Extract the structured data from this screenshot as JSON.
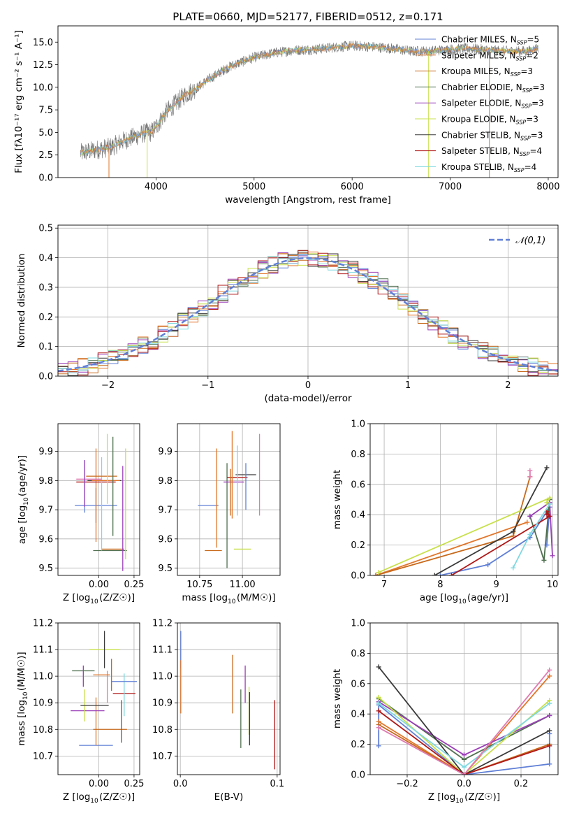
{
  "title": "PLATE=0660, MJD=52177, FIBERID=0512, z=0.171",
  "colors": {
    "chabrier_miles": "#5f7fd6",
    "salpeter_miles": "#e3762a",
    "kroupa_miles": "#c86a1c",
    "chabrier_elodie": "#4f6f4f",
    "salpeter_elodie": "#9b3fb8",
    "kroupa_elodie": "#c9e04c",
    "chabrier_stelib": "#3a3a3a",
    "salpeter_stelib": "#b01818",
    "kroupa_stelib": "#7fd8e0",
    "pink": "#e07ab0",
    "grid": "#b0b0b0",
    "gray_spectrum": "#707070"
  },
  "chart_data": [
    {
      "type": "line",
      "title": "PLATE=0660, MJD=52177, FIBERID=0512, z=0.171",
      "xlabel": "wavelength [Angstrom, rest frame]",
      "ylabel": "Flux [fλ10⁻¹⁷ erg cm⁻² s⁻¹ A⁻¹]",
      "xlim": [
        3000,
        8100
      ],
      "ylim": [
        0,
        16.8
      ],
      "xticks": [
        "4000",
        "5000",
        "6000",
        "7000",
        "8000"
      ],
      "yticks": [
        "0.0",
        "2.5",
        "5.0",
        "7.5",
        "10.0",
        "12.5",
        "15.0"
      ],
      "legend": [
        "Chabrier MILES, N_SSP=5",
        "Salpeter MILES, N_SSP=2",
        "Kroupa MILES, N_SSP=3",
        "Chabrier ELODIE, N_SSP=3",
        "Salpeter ELODIE, N_SSP=3",
        "Kroupa ELODIE, N_SSP=3",
        "Chabrier STELIB, N_SSP=3",
        "Salpeter STELIB, N_SSP=4",
        "Kroupa STELIB, N_SSP=4"
      ],
      "legend_placement": "right",
      "continuum": {
        "x": [
          3230,
          3400,
          3550,
          3650,
          3800,
          3900,
          3950,
          4000,
          4100,
          4200,
          4300,
          4400,
          4500,
          4600,
          4700,
          4800,
          5000,
          5200,
          5400,
          5600,
          5800,
          6000,
          6200,
          6400,
          6600,
          6800,
          7000,
          7200,
          7400,
          7600,
          7800,
          7900
        ],
        "y": [
          2.7,
          3.1,
          3.4,
          4.0,
          4.6,
          5.0,
          5.0,
          5.6,
          7.2,
          8.2,
          9.2,
          9.8,
          10.6,
          11.3,
          12.0,
          12.5,
          13.3,
          13.8,
          14.1,
          14.2,
          14.4,
          14.6,
          14.5,
          14.3,
          14.0,
          14.0,
          14.2,
          14.3,
          14.1,
          14.0,
          14.0,
          14.4
        ]
      }
    },
    {
      "type": "step",
      "xlabel": "(data-model)/error",
      "ylabel": "Normed distribution",
      "xlim": [
        -2.5,
        2.5
      ],
      "ylim": [
        0,
        0.51
      ],
      "xticks": [
        "−2",
        "−1",
        "0",
        "1",
        "2"
      ],
      "yticks": [
        "0.0",
        "0.1",
        "0.2",
        "0.3",
        "0.4",
        "0.5"
      ],
      "legend": [
        "𝒩(0,1)"
      ],
      "legend_placement": "top-right",
      "bins": [
        -2.5,
        2.5,
        50
      ]
    },
    {
      "type": "errorbar",
      "xlabel": "Z [log10(Z/Z☉)]",
      "ylabel": "age  [log10(age/yr)]",
      "xlim": [
        -0.29,
        0.29
      ],
      "ylim": [
        9.475,
        9.995
      ],
      "xticks": [
        "0.00",
        "0.25"
      ],
      "yticks": [
        "9.5",
        "9.6",
        "9.7",
        "9.8",
        "9.9"
      ],
      "points": [
        {
          "x": -0.02,
          "y": 9.715,
          "xe": 0.15,
          "ye": 0.06
        },
        {
          "x": -0.02,
          "y": 9.75,
          "xe": 0.0,
          "ye": 0.16
        },
        {
          "x": 0.1,
          "y": 9.565,
          "xe": 0.08,
          "ye": 0.0
        },
        {
          "x": 0.08,
          "y": 9.56,
          "xe": 0.12,
          "ye": 0.0
        },
        {
          "x": 0.17,
          "y": 9.67,
          "xe": 0.0,
          "ye": 0.18
        },
        {
          "x": 0.19,
          "y": 9.72,
          "xe": 0.0,
          "ye": 0.19
        },
        {
          "x": 0.04,
          "y": 9.8,
          "xe": 0.12,
          "ye": 0.0
        },
        {
          "x": -0.02,
          "y": 9.795,
          "xe": 0.14,
          "ye": 0.0
        },
        {
          "x": 0.02,
          "y": 9.72,
          "xe": 0.0,
          "ye": 0.16
        },
        {
          "x": -0.07,
          "y": 9.805,
          "xe": 0.09,
          "ye": 0.0
        },
        {
          "x": -0.1,
          "y": 9.78,
          "xe": 0.0,
          "ye": 0.09
        },
        {
          "x": 0.05,
          "y": 9.8,
          "xe": 0.1,
          "ye": 0.0
        },
        {
          "x": 0.02,
          "y": 9.815,
          "xe": 0.11,
          "ye": 0.0
        },
        {
          "x": 0.1,
          "y": 9.78,
          "xe": 0.0,
          "ye": 0.17
        },
        {
          "x": -0.1,
          "y": 9.79,
          "xe": 0.0,
          "ye": 0.08
        },
        {
          "x": 0.06,
          "y": 9.84,
          "xe": 0.0,
          "ye": 0.12
        }
      ]
    },
    {
      "type": "errorbar",
      "xlabel": "mass [log10(M/M☉)]",
      "ylabel": "",
      "xlim": [
        10.62,
        11.22
      ],
      "ylim": [
        9.475,
        9.995
      ],
      "xticks": [
        "10.75",
        "11.00"
      ],
      "yticks": [
        "9.5",
        "9.6",
        "9.7",
        "9.8",
        "9.9"
      ],
      "points": [
        {
          "x": 10.8,
          "y": 9.715,
          "xe": 0.06,
          "ye": 0.0
        },
        {
          "x": 10.85,
          "y": 9.74,
          "xe": 0.0,
          "ye": 0.17
        },
        {
          "x": 10.83,
          "y": 9.56,
          "xe": 0.05,
          "ye": 0.0
        },
        {
          "x": 10.91,
          "y": 9.68,
          "xe": 0.0,
          "ye": 0.18
        },
        {
          "x": 10.95,
          "y": 9.795,
          "xe": 0.06,
          "ye": 0.0
        },
        {
          "x": 11.0,
          "y": 9.565,
          "xe": 0.05,
          "ye": 0.0
        },
        {
          "x": 11.02,
          "y": 9.82,
          "xe": 0.06,
          "ye": 0.0
        },
        {
          "x": 10.97,
          "y": 9.81,
          "xe": 0.06,
          "ye": 0.0
        },
        {
          "x": 10.97,
          "y": 9.8,
          "xe": 0.0,
          "ye": 0.12
        },
        {
          "x": 11.1,
          "y": 9.82,
          "xe": 0.0,
          "ye": 0.14
        },
        {
          "x": 11.02,
          "y": 9.78,
          "xe": 0.0,
          "ye": 0.08
        },
        {
          "x": 10.94,
          "y": 9.82,
          "xe": 0.0,
          "ye": 0.15
        },
        {
          "x": 10.93,
          "y": 9.76,
          "xe": 0.0,
          "ye": 0.08
        }
      ]
    },
    {
      "type": "line",
      "xlabel": "age  [log10(age/yr)]",
      "ylabel": "mass weight",
      "xlim": [
        6.75,
        10.1
      ],
      "ylim": [
        0,
        1
      ],
      "xticks": [
        "7",
        "8",
        "9",
        "10"
      ],
      "yticks": [
        "0.0",
        "0.2",
        "0.4",
        "0.6",
        "0.8",
        "1.0"
      ],
      "series": [
        {
          "name": "Chabrier MILES, N_SSP=5",
          "x": [
            8.0,
            8.85,
            9.6,
            9.95,
            9.9
          ],
          "y": [
            0.0,
            0.07,
            0.25,
            0.45,
            0.2
          ]
        },
        {
          "name": "Salpeter MILES, N_SSP=2",
          "x": [
            6.85,
            9.55
          ],
          "y": [
            0.0,
            0.35
          ]
        },
        {
          "name": "Kroupa MILES, N_SSP=3",
          "x": [
            6.85,
            9.3,
            9.6
          ],
          "y": [
            0.0,
            0.26,
            0.65
          ]
        },
        {
          "name": "Chabrier ELODIE, N_SSP=3",
          "x": [
            9.6,
            9.85,
            9.95
          ],
          "y": [
            0.39,
            0.1,
            0.5
          ]
        },
        {
          "name": "Salpeter ELODIE, N_SSP=3",
          "x": [
            9.6,
            9.95,
            10.0
          ],
          "y": [
            0.39,
            0.48,
            0.13
          ]
        },
        {
          "name": "Kroupa ELODIE, N_SSP=3",
          "x": [
            6.9,
            9.95,
            9.9
          ],
          "y": [
            0.02,
            0.51,
            0.48
          ]
        },
        {
          "name": "Chabrier STELIB, N_SSP=3",
          "x": [
            7.9,
            9.3,
            9.9
          ],
          "y": [
            0.0,
            0.29,
            0.71
          ]
        },
        {
          "name": "Salpeter STELIB, N_SSP=4",
          "x": [
            8.2,
            9.95,
            9.9,
            9.9
          ],
          "y": [
            0.0,
            0.39,
            0.42,
            0.4
          ]
        },
        {
          "name": "Kroupa STELIB, N_SSP=4",
          "x": [
            9.3,
            9.6,
            9.95
          ],
          "y": [
            0.05,
            0.27,
            0.47
          ]
        },
        {
          "name": "",
          "x": [
            9.6,
            9.6
          ],
          "y": [
            0.65,
            0.69
          ]
        }
      ]
    },
    {
      "type": "errorbar",
      "xlabel": "Z [log10(Z/Z☉)]",
      "ylabel": "mass [log10(M/M☉)]",
      "xlim": [
        -0.29,
        0.29
      ],
      "ylim": [
        10.63,
        11.2
      ],
      "xticks": [
        "0.00",
        "0.25"
      ],
      "yticks": [
        "10.7",
        "10.8",
        "10.9",
        "11.0",
        "11.1",
        "11.2"
      ],
      "points": [
        {
          "x": -0.02,
          "y": 10.74,
          "xe": 0.12,
          "ye": 0.0
        },
        {
          "x": -0.02,
          "y": 10.83,
          "xe": 0.0,
          "ye": 0.09
        },
        {
          "x": 0.08,
          "y": 10.8,
          "xe": 0.12,
          "ye": 0.0
        },
        {
          "x": 0.16,
          "y": 10.83,
          "xe": 0.0,
          "ye": 0.08
        },
        {
          "x": -0.08,
          "y": 10.87,
          "xe": 0.12,
          "ye": 0.0
        },
        {
          "x": -0.1,
          "y": 10.89,
          "xe": 0.0,
          "ye": 0.06
        },
        {
          "x": -0.03,
          "y": 10.89,
          "xe": 0.1,
          "ye": 0.0
        },
        {
          "x": 0.18,
          "y": 10.935,
          "xe": 0.08,
          "ye": 0.0
        },
        {
          "x": 0.18,
          "y": 10.93,
          "xe": 0.0,
          "ye": 0.08
        },
        {
          "x": 0.06,
          "y": 10.96,
          "xe": 0.0,
          "ye": 0.06
        },
        {
          "x": 0.18,
          "y": 10.98,
          "xe": 0.09,
          "ye": 0.0
        },
        {
          "x": 0.02,
          "y": 11.005,
          "xe": 0.06,
          "ye": 0.0
        },
        {
          "x": 0.09,
          "y": 11.005,
          "xe": 0.0,
          "ye": 0.06
        },
        {
          "x": -0.11,
          "y": 11.02,
          "xe": 0.08,
          "ye": 0.0
        },
        {
          "x": -0.11,
          "y": 11.0,
          "xe": 0.0,
          "ye": 0.04
        },
        {
          "x": 0.04,
          "y": 11.1,
          "xe": 0.11,
          "ye": 0.0
        },
        {
          "x": 0.04,
          "y": 11.1,
          "xe": 0.0,
          "ye": 0.07
        }
      ]
    },
    {
      "type": "errorbar",
      "xlabel": "E(B-V)",
      "ylabel": "",
      "xlim": [
        -0.003,
        0.103
      ],
      "ylim": [
        10.63,
        11.2
      ],
      "xticks": [
        "0.0",
        "0.1"
      ],
      "yticks": [
        "10.7",
        "10.8",
        "10.9",
        "11.0",
        "11.1",
        "11.2"
      ],
      "points": [
        {
          "x": 0.0005,
          "y": 11.1,
          "xe": 0.0,
          "ye": 0.07
        },
        {
          "x": 0.0005,
          "y": 10.96,
          "xe": 0.0,
          "ye": 0.1
        },
        {
          "x": 0.054,
          "y": 10.97,
          "xe": 0.0,
          "ye": 0.11
        },
        {
          "x": 0.0625,
          "y": 10.84,
          "xe": 0.0,
          "ye": 0.11
        },
        {
          "x": 0.067,
          "y": 10.97,
          "xe": 0.0,
          "ye": 0.07
        },
        {
          "x": 0.071,
          "y": 10.87,
          "xe": 0.0,
          "ye": 0.09
        },
        {
          "x": 0.0715,
          "y": 10.84,
          "xe": 0.0,
          "ye": 0.1
        },
        {
          "x": 0.0975,
          "y": 10.78,
          "xe": 0.0,
          "ye": 0.13
        }
      ]
    },
    {
      "type": "line",
      "xlabel": "Z [log10(Z/Z☉)]",
      "ylabel": "mass weight",
      "xlim": [
        -0.33,
        0.33
      ],
      "ylim": [
        0,
        1
      ],
      "xticks": [
        "−0.2",
        "0.0",
        "0.2"
      ],
      "yticks": [
        "0.0",
        "0.2",
        "0.4",
        "0.6",
        "0.8",
        "1.0"
      ],
      "series": [
        {
          "name": "Chabrier MILES, N_SSP=5",
          "x": [
            -0.3,
            -0.3,
            0.0,
            0.3,
            0.3,
            0.3
          ],
          "y": [
            0.19,
            0.46,
            0.0,
            0.07,
            0.27,
            0.2
          ]
        },
        {
          "name": "Salpeter MILES, N_SSP=2",
          "x": [
            -0.3,
            0.0,
            0.3
          ],
          "y": [
            0.35,
            0.0,
            0.65
          ]
        },
        {
          "name": "Kroupa MILES, N_SSP=3",
          "x": [
            -0.3,
            0.0,
            0.3
          ],
          "y": [
            0.33,
            0.0,
            0.2
          ]
        },
        {
          "name": "Chabrier ELODIE, N_SSP=3",
          "x": [
            -0.3,
            0.0,
            0.3
          ],
          "y": [
            0.5,
            0.1,
            0.39
          ]
        },
        {
          "name": "Salpeter ELODIE, N_SSP=3",
          "x": [
            -0.3,
            0.0,
            0.3
          ],
          "y": [
            0.48,
            0.13,
            0.39
          ]
        },
        {
          "name": "Kroupa ELODIE, N_SSP=3",
          "x": [
            -0.3,
            0.0,
            0.3
          ],
          "y": [
            0.51,
            0.0,
            0.49
          ]
        },
        {
          "name": "Chabrier STELIB, N_SSP=3",
          "x": [
            -0.3,
            0.0,
            0.3
          ],
          "y": [
            0.71,
            0.0,
            0.29
          ]
        },
        {
          "name": "Salpeter STELIB, N_SSP=4",
          "x": [
            -0.3,
            0.0,
            0.3
          ],
          "y": [
            0.42,
            0.0,
            0.19
          ]
        },
        {
          "name": "Kroupa STELIB, N_SSP=4",
          "x": [
            -0.3,
            0.0,
            0.3
          ],
          "y": [
            0.47,
            0.05,
            0.47
          ]
        },
        {
          "name": "",
          "x": [
            -0.3,
            0.0,
            0.3
          ],
          "y": [
            0.31,
            0.0,
            0.69
          ]
        }
      ]
    }
  ]
}
